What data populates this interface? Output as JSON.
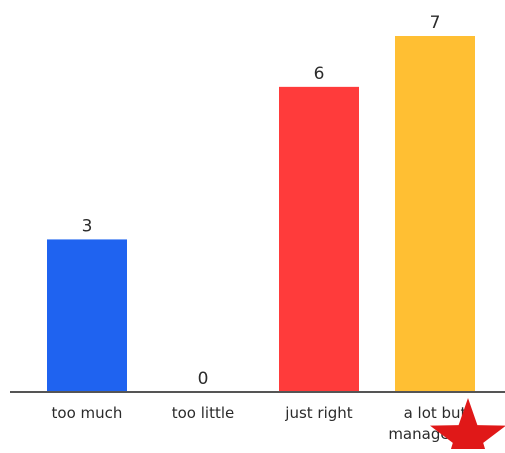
{
  "chart_data": {
    "type": "bar",
    "categories": [
      "too much",
      "too little",
      "just right",
      "a lot but manageable"
    ],
    "category_label_lines": [
      [
        "too much"
      ],
      [
        "too little"
      ],
      [
        "just right"
      ],
      [
        "a lot but",
        "manageable"
      ]
    ],
    "values": [
      3,
      0,
      6,
      7
    ],
    "value_labels": [
      "3",
      "0",
      "6",
      "7"
    ],
    "colors": [
      "#1f63f0",
      "#ffffff",
      "#ff3b3b",
      "#ffbf33"
    ],
    "title": "",
    "xlabel": "",
    "ylabel": "",
    "ylim": [
      0,
      7
    ],
    "grid": false,
    "legend": "none",
    "axis_color": "#555555",
    "decoration": {
      "icon": "star-icon",
      "color": "#e01818"
    }
  }
}
